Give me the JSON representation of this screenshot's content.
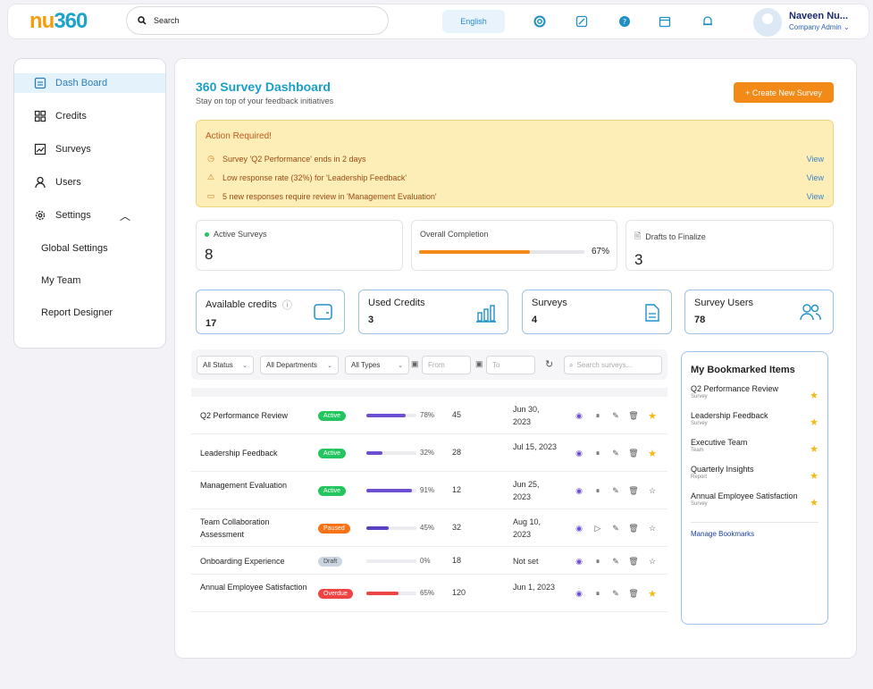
{
  "brand": {
    "prefix": "nu",
    "suffix": "360"
  },
  "search": {
    "placeholder": "Search"
  },
  "header": {
    "language": "English",
    "user_name": "Naveen Nu...",
    "user_role": "Company Admin"
  },
  "icons": [
    "lifebuoy-icon",
    "external-link-icon",
    "help-icon",
    "calendar-icon",
    "bell-icon"
  ],
  "sidebar": {
    "items": [
      {
        "label": "Dash Board",
        "icon": "dashboard-icon"
      },
      {
        "label": "Credits",
        "icon": "grid-icon"
      },
      {
        "label": "Surveys",
        "icon": "survey-icon"
      },
      {
        "label": "Users",
        "icon": "user-icon"
      },
      {
        "label": "Settings",
        "icon": "gear-icon"
      }
    ],
    "settings_sub": [
      "Global Settings",
      "My Team",
      "Report Designer"
    ]
  },
  "page": {
    "title": "360 Survey Dashboard",
    "subtitle": "Stay on top of your feedback initiatives",
    "create_button": "+ Create New Survey"
  },
  "alert": {
    "title": "Action Required!",
    "items": [
      {
        "text": "Survey 'Q2 Performance' ends in 2 days",
        "action": "View"
      },
      {
        "text": "Low response rate (32%) for 'Leadership Feedback'",
        "action": "View"
      },
      {
        "text": "5 new responses require review in 'Management Evaluation'",
        "action": "View"
      }
    ]
  },
  "stats": {
    "active_label": "Active Surveys",
    "active_value": "8",
    "completion_label": "Overall Completion",
    "completion_value": "67%",
    "completion_fraction": 0.67,
    "drafts_label": "Drafts to Finalize",
    "drafts_value": "3"
  },
  "cards": [
    {
      "label": "Available credits",
      "value": "17"
    },
    {
      "label": "Used Credits",
      "value": "3"
    },
    {
      "label": "Surveys",
      "value": "4"
    },
    {
      "label": "Survey Users",
      "value": "78"
    }
  ],
  "filters": {
    "status": "All Status",
    "departments": "All Departments",
    "types": "All Types",
    "from": "From",
    "to": "To",
    "search_placeholder": "Search surveys..."
  },
  "surveys": [
    {
      "name": "Q2 Performance Review",
      "status": "Active",
      "progress": "78%",
      "responses": "45",
      "date": "Jun 30, 2023",
      "bookmarked": true
    },
    {
      "name": "Leadership Feedback",
      "status": "Active",
      "progress": "32%",
      "responses": "28",
      "date": "Jul 15, 2023",
      "bookmarked": true
    },
    {
      "name": "Management Evaluation",
      "status": "Active",
      "progress": "91%",
      "responses": "12",
      "date": "Jun 25, 2023",
      "bookmarked": false
    },
    {
      "name": "Team Collaboration Assessment",
      "status": "Paused",
      "progress": "45%",
      "responses": "32",
      "date": "Aug 10, 2023",
      "bookmarked": false
    },
    {
      "name": "Onboarding Experience",
      "status": "Draft",
      "progress": "0%",
      "responses": "18",
      "date": "Not set",
      "bookmarked": false
    },
    {
      "name": "Annual Employee Satisfaction",
      "status": "Overdue",
      "progress": "65%",
      "responses": "120",
      "date": "Jun 1, 2023",
      "bookmarked": true
    }
  ],
  "status_colors": {
    "Active": "#22c55e",
    "Paused": "#f97316",
    "Draft": "#cbd5e1",
    "Overdue": "#ef4444"
  },
  "bar_colors": {
    "Active": "#6d4fd3",
    "Paused": "#5b3fc4",
    "Draft": "#cbd5e1",
    "Overdue": "#ef4444"
  },
  "bookmarks": {
    "title": "My Bookmarked Items",
    "items": [
      {
        "name": "Q2 Performance Review",
        "type": "Survey"
      },
      {
        "name": "Leadership Feedback",
        "type": "Survey"
      },
      {
        "name": "Executive Team",
        "type": "Team"
      },
      {
        "name": "Quarterly Insights",
        "type": "Report"
      },
      {
        "name": "Annual Employee Satisfaction",
        "type": "Survey"
      }
    ],
    "manage": "Manage Bookmarks"
  }
}
